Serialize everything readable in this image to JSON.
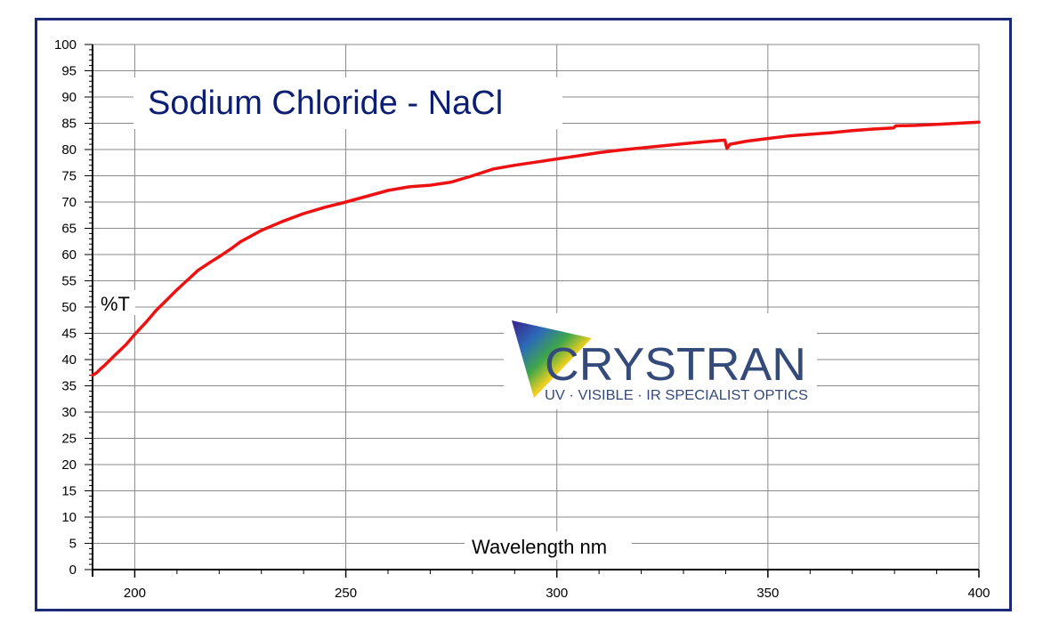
{
  "chart_data": {
    "type": "line",
    "title": "Sodium Chloride - NaCl",
    "xlabel": "Wavelength nm",
    "ylabel": "%T",
    "xlim": [
      190,
      400
    ],
    "ylim": [
      0,
      100
    ],
    "x_ticks": [
      200,
      250,
      300,
      350,
      400
    ],
    "y_ticks": [
      0,
      5,
      10,
      15,
      20,
      25,
      30,
      35,
      40,
      45,
      50,
      55,
      60,
      65,
      70,
      75,
      80,
      85,
      90,
      95,
      100
    ],
    "grid": true,
    "line_color": "#ee1111",
    "series": [
      {
        "x": [
          190,
          191,
          192,
          193,
          195,
          198,
          200,
          203,
          205,
          208,
          210,
          213,
          215,
          218,
          220,
          223,
          225,
          230,
          235,
          240,
          245,
          250,
          255,
          260,
          265,
          270,
          275,
          280,
          285,
          290,
          295,
          300,
          305,
          310,
          315,
          320,
          325,
          330,
          335,
          339.8,
          340.3,
          341,
          345,
          350,
          355,
          360,
          365,
          370,
          375,
          379.8,
          380.3,
          385,
          390,
          395,
          400
        ],
        "values": [
          37.0,
          37.5,
          38.3,
          39.0,
          40.6,
          42.9,
          44.8,
          47.4,
          49.3,
          51.7,
          53.3,
          55.5,
          57.0,
          58.6,
          59.6,
          61.2,
          62.4,
          64.6,
          66.3,
          67.8,
          69.0,
          70.0,
          71.1,
          72.2,
          72.9,
          73.2,
          73.8,
          75.0,
          76.3,
          77.0,
          77.6,
          78.2,
          78.8,
          79.4,
          79.9,
          80.3,
          80.7,
          81.1,
          81.5,
          81.8,
          80.2,
          81.0,
          81.6,
          82.1,
          82.6,
          82.9,
          83.2,
          83.6,
          83.9,
          84.1,
          84.5,
          84.6,
          84.8,
          85.0,
          85.2
        ]
      }
    ]
  },
  "logo": {
    "name": "CRYSTRAN",
    "tagline": "UV · VISIBLE · IR SPECIALIST OPTICS"
  }
}
